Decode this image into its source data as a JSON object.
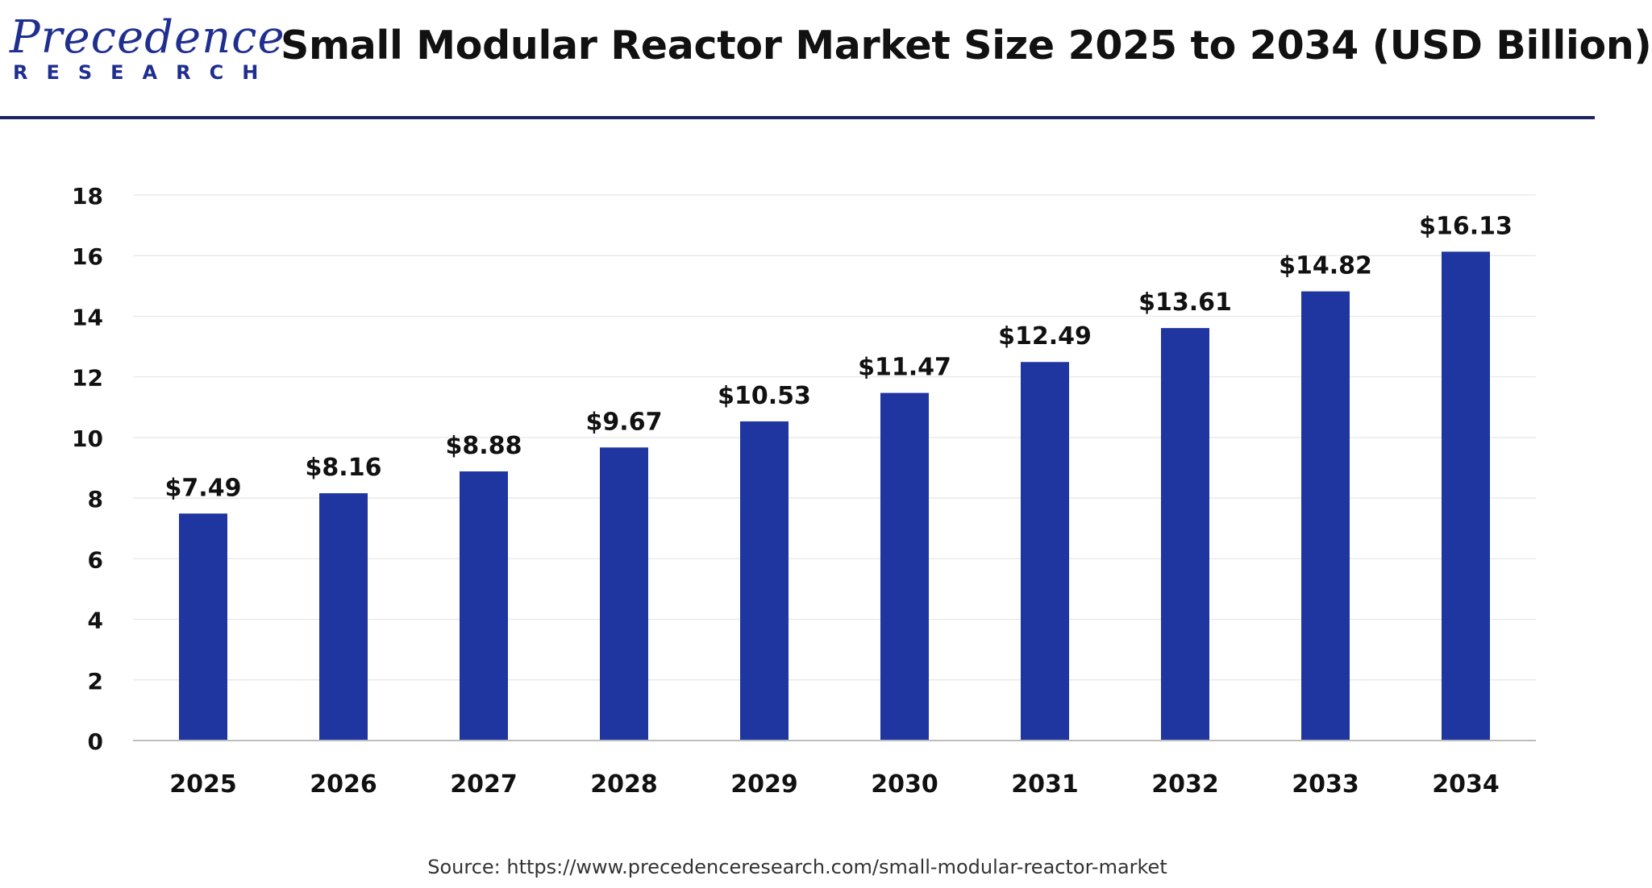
{
  "header": {
    "logo_top": "Precedence",
    "logo_bottom": "RESEARCH",
    "title": "Small Modular Reactor Market Size 2025 to 2034 (USD Billion)"
  },
  "source": "Source: https://www.precedenceresearch.com/small-modular-reactor-market",
  "colors": {
    "bar": "#1f35a0",
    "brand": "#1f2f8f",
    "rule": "#1c2461"
  },
  "chart_data": {
    "type": "bar",
    "title": "Small Modular Reactor Market Size 2025 to 2034 (USD Billion)",
    "categories": [
      "2025",
      "2026",
      "2027",
      "2028",
      "2029",
      "2030",
      "2031",
      "2032",
      "2033",
      "2034"
    ],
    "values": [
      7.49,
      8.16,
      8.88,
      9.67,
      10.53,
      11.47,
      12.49,
      13.61,
      14.82,
      16.13
    ],
    "data_labels": [
      "$7.49",
      "$8.16",
      "$8.88",
      "$9.67",
      "$10.53",
      "$11.47",
      "$12.49",
      "$13.61",
      "$14.82",
      "$16.13"
    ],
    "yticks": [
      "0",
      "2",
      "4",
      "6",
      "8",
      "10",
      "12",
      "14",
      "16",
      "18"
    ],
    "ylim": [
      0,
      18
    ],
    "grid": true,
    "legend": "none"
  }
}
